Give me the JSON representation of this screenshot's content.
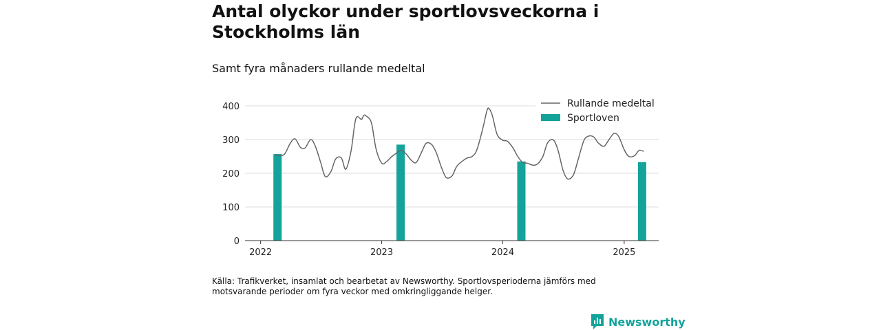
{
  "header": {
    "title": "Antal olyckor under sportlovsveckorna i Stockholms län",
    "subtitle": "Samt fyra månaders rullande medeltal"
  },
  "footer": {
    "source": "Källa: Trafikverket, insamlat och bearbetat av Newsworthy. Sportlovsperioderna jämförs med motsvarande perioder om fyra veckor med omkringliggande helger.",
    "brand": "Newsworthy"
  },
  "colors": {
    "line": "#666666",
    "bars": "#14a39a",
    "grid": "#dddddd",
    "brand": "#14a39a"
  },
  "icons": {
    "brand_logo": "bar-chart-speech-bubble-icon"
  },
  "chart_data": {
    "type": "bar+line",
    "title": "Antal olyckor under sportlovsveckorna i Stockholms län",
    "subtitle": "Samt fyra månaders rullande medeltal",
    "xlabel": "",
    "ylabel": "",
    "x_ticks": [
      "2022",
      "2023",
      "2024",
      "2025"
    ],
    "y_ticks": [
      0,
      100,
      200,
      300,
      400
    ],
    "ylim": [
      0,
      400
    ],
    "xlim": [
      "2021-11-15",
      "2025-04-15"
    ],
    "grid": true,
    "legend_position": "top-right",
    "series": [
      {
        "name": "Rullande medeltal",
        "type": "line",
        "points": [
          [
            "2022-02-15",
            255
          ],
          [
            "2022-03-01",
            252
          ],
          [
            "2022-03-15",
            258
          ],
          [
            "2022-04-01",
            290
          ],
          [
            "2022-04-15",
            302
          ],
          [
            "2022-05-01",
            277
          ],
          [
            "2022-05-15",
            275
          ],
          [
            "2022-06-01",
            300
          ],
          [
            "2022-06-15",
            280
          ],
          [
            "2022-07-01",
            232
          ],
          [
            "2022-07-15",
            190
          ],
          [
            "2022-08-01",
            205
          ],
          [
            "2022-08-15",
            242
          ],
          [
            "2022-09-01",
            246
          ],
          [
            "2022-09-15",
            212
          ],
          [
            "2022-10-01",
            268
          ],
          [
            "2022-10-15",
            362
          ],
          [
            "2022-11-01",
            360
          ],
          [
            "2022-11-08",
            372
          ],
          [
            "2022-11-15",
            370
          ],
          [
            "2022-12-01",
            350
          ],
          [
            "2022-12-15",
            272
          ],
          [
            "2023-01-01",
            230
          ],
          [
            "2023-01-15",
            234
          ],
          [
            "2023-02-01",
            250
          ],
          [
            "2023-02-15",
            260
          ],
          [
            "2023-03-01",
            268
          ],
          [
            "2023-03-15",
            258
          ],
          [
            "2023-04-01",
            238
          ],
          [
            "2023-04-15",
            232
          ],
          [
            "2023-05-01",
            262
          ],
          [
            "2023-05-15",
            289
          ],
          [
            "2023-06-01",
            285
          ],
          [
            "2023-06-15",
            260
          ],
          [
            "2023-07-01",
            215
          ],
          [
            "2023-07-15",
            187
          ],
          [
            "2023-08-01",
            192
          ],
          [
            "2023-08-15",
            220
          ],
          [
            "2023-09-01",
            236
          ],
          [
            "2023-09-15",
            245
          ],
          [
            "2023-10-01",
            250
          ],
          [
            "2023-10-15",
            270
          ],
          [
            "2023-11-01",
            330
          ],
          [
            "2023-11-15",
            388
          ],
          [
            "2023-11-22",
            390
          ],
          [
            "2023-12-01",
            370
          ],
          [
            "2023-12-15",
            315
          ],
          [
            "2024-01-01",
            298
          ],
          [
            "2024-01-15",
            295
          ],
          [
            "2024-02-01",
            275
          ],
          [
            "2024-02-15",
            250
          ],
          [
            "2024-03-01",
            232
          ],
          [
            "2024-03-15",
            230
          ],
          [
            "2024-04-01",
            224
          ],
          [
            "2024-04-15",
            228
          ],
          [
            "2024-05-01",
            250
          ],
          [
            "2024-05-15",
            290
          ],
          [
            "2024-06-01",
            299
          ],
          [
            "2024-06-15",
            270
          ],
          [
            "2024-07-01",
            208
          ],
          [
            "2024-07-15",
            183
          ],
          [
            "2024-08-01",
            195
          ],
          [
            "2024-08-15",
            240
          ],
          [
            "2024-09-01",
            296
          ],
          [
            "2024-09-15",
            310
          ],
          [
            "2024-10-01",
            308
          ],
          [
            "2024-10-15",
            290
          ],
          [
            "2024-11-01",
            280
          ],
          [
            "2024-11-15",
            298
          ],
          [
            "2024-12-01",
            318
          ],
          [
            "2024-12-15",
            310
          ],
          [
            "2025-01-01",
            270
          ],
          [
            "2025-01-15",
            250
          ],
          [
            "2025-02-01",
            252
          ],
          [
            "2025-02-15",
            268
          ],
          [
            "2025-03-01",
            265
          ]
        ]
      },
      {
        "name": "Sportloven",
        "type": "bar",
        "points": [
          [
            "2022-02-21",
            257
          ],
          [
            "2023-02-27",
            285
          ],
          [
            "2024-02-26",
            235
          ],
          [
            "2025-02-24",
            233
          ]
        ]
      }
    ]
  }
}
